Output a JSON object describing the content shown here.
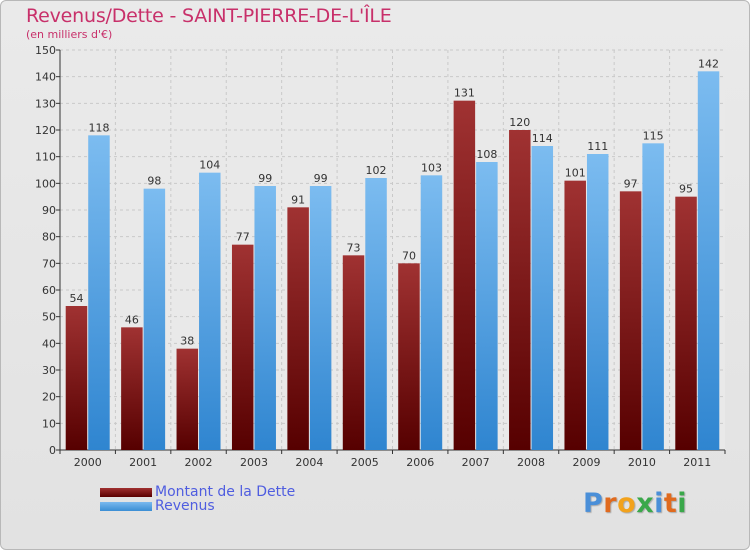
{
  "title": "Revenus/Dette - SAINT-PIERRE-DE-L'ÎLE",
  "subtitle": "(en milliers d'€)",
  "legend": {
    "debt_label": "Montant de la Dette",
    "revenue_label": "Revenus"
  },
  "logo_text": "Proxiti",
  "colors": {
    "debt_top": "#a03232",
    "debt_bottom": "#5a0000",
    "revenue_top": "#7cbcf0",
    "revenue_bottom": "#2f85d0",
    "title": "#c8306a",
    "legend_text": "#4f5de0"
  },
  "chart_data": {
    "type": "bar",
    "title": "Revenus/Dette - SAINT-PIERRE-DE-L'ÎLE",
    "subtitle": "(en milliers d'€)",
    "categories": [
      "2000",
      "2001",
      "2002",
      "2003",
      "2004",
      "2005",
      "2006",
      "2007",
      "2008",
      "2009",
      "2010",
      "2011"
    ],
    "series": [
      {
        "name": "Montant de la Dette",
        "values": [
          54,
          46,
          38,
          77,
          91,
          73,
          70,
          131,
          120,
          101,
          97,
          95
        ]
      },
      {
        "name": "Revenus",
        "values": [
          118,
          98,
          104,
          99,
          99,
          102,
          103,
          108,
          114,
          111,
          115,
          142
        ]
      }
    ],
    "ylim": [
      0,
      150
    ],
    "yticks": [
      0,
      10,
      20,
      30,
      40,
      50,
      60,
      70,
      80,
      90,
      100,
      110,
      120,
      130,
      140,
      150
    ],
    "grid": true,
    "legend": "bottom-left"
  }
}
